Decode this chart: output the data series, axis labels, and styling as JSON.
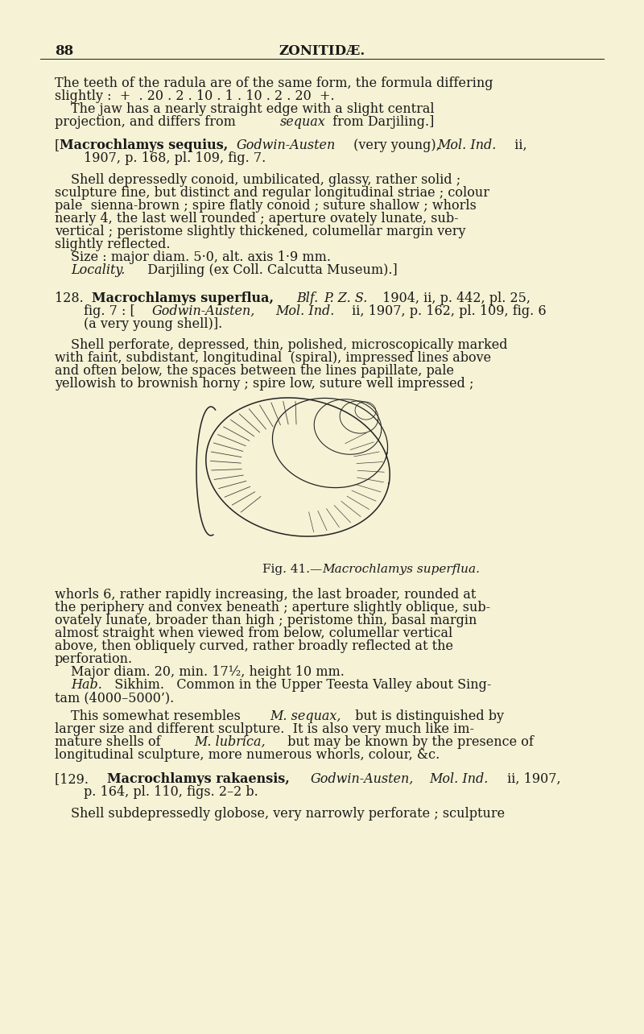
{
  "background_color": "#f5f2d5",
  "page_number": "88",
  "header": "ZONITIDÆ.",
  "text_color": "#1a1a1a",
  "fig_caption_normal": "Fig. 41.—",
  "fig_caption_italic": "Macrochlamys superflua."
}
